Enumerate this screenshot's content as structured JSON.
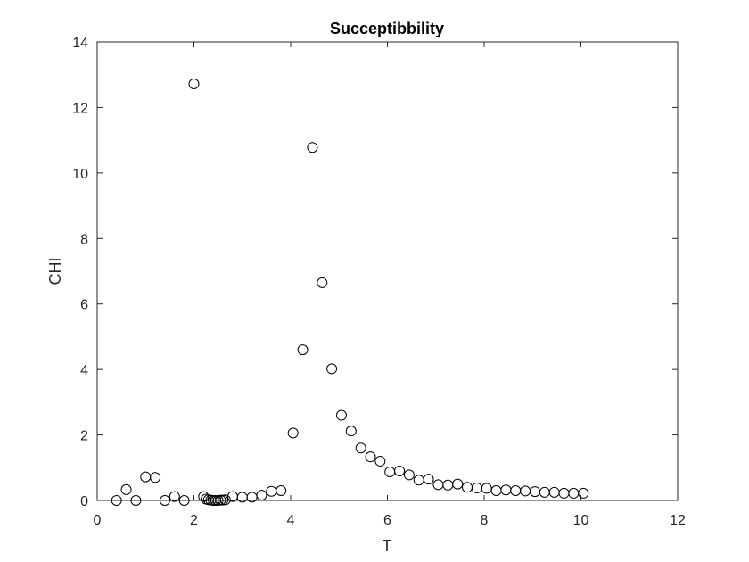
{
  "chart_data": {
    "type": "scatter",
    "title": "Succeptibbility",
    "xlabel": "T",
    "ylabel": "CHI",
    "xlim": [
      0,
      12
    ],
    "ylim": [
      0,
      14
    ],
    "xticks": [
      0,
      2,
      4,
      6,
      8,
      10,
      12
    ],
    "yticks": [
      0,
      2,
      4,
      6,
      8,
      10,
      12,
      14
    ],
    "xtick_labels": [
      "0",
      "2",
      "4",
      "6",
      "8",
      "10",
      "12"
    ],
    "ytick_labels": [
      "0",
      "2",
      "4",
      "6",
      "8",
      "10",
      "12",
      "14"
    ],
    "marker": "open-circle",
    "grid": false,
    "legend": false,
    "colors": {
      "marker": "#000000",
      "axis": "#262626",
      "background": "#ffffff"
    },
    "x": [
      0.4,
      0.6,
      0.8,
      1.0,
      1.2,
      1.4,
      1.6,
      1.8,
      2.0,
      2.2,
      2.25,
      2.3,
      2.35,
      2.4,
      2.45,
      2.5,
      2.55,
      2.6,
      2.65,
      2.8,
      3.0,
      3.2,
      3.4,
      3.6,
      3.8,
      4.05,
      4.25,
      4.45,
      4.65,
      4.85,
      5.05,
      5.25,
      5.45,
      5.65,
      5.85,
      6.05,
      6.25,
      6.45,
      6.65,
      6.85,
      7.05,
      7.25,
      7.45,
      7.65,
      7.85,
      8.05,
      8.25,
      8.45,
      8.65,
      8.85,
      9.05,
      9.25,
      9.45,
      9.65,
      9.85,
      10.05
    ],
    "y": [
      0.0,
      0.33,
      0.0,
      0.72,
      0.7,
      0.0,
      0.12,
      0.0,
      12.72,
      0.12,
      0.04,
      0.02,
      0.01,
      0.0,
      0.0,
      0.0,
      0.01,
      0.01,
      0.02,
      0.12,
      0.1,
      0.1,
      0.16,
      0.28,
      0.3,
      2.06,
      4.6,
      10.78,
      6.65,
      4.02,
      2.6,
      2.12,
      1.6,
      1.33,
      1.2,
      0.87,
      0.9,
      0.78,
      0.62,
      0.65,
      0.48,
      0.47,
      0.5,
      0.4,
      0.38,
      0.37,
      0.3,
      0.32,
      0.3,
      0.29,
      0.27,
      0.25,
      0.25,
      0.22,
      0.22,
      0.22
    ]
  }
}
